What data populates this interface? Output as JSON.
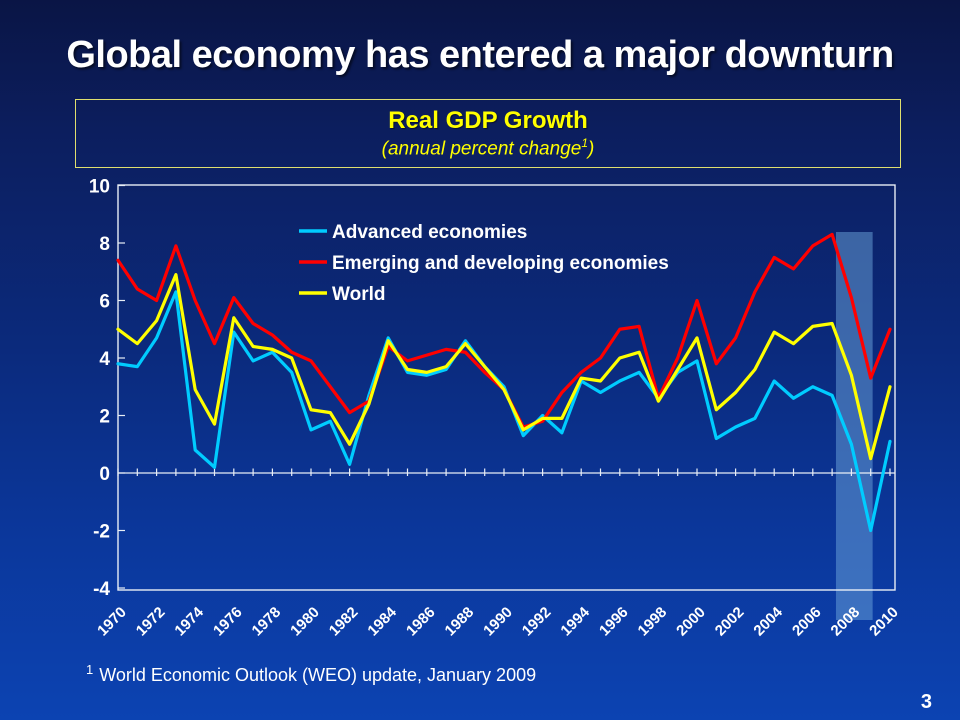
{
  "slide": {
    "title": "Global economy has entered a major downturn",
    "page_number": "3",
    "footnote_sup": "1",
    "footnote_text": "World Economic Outlook (WEO) update, January 2009"
  },
  "chart_header": {
    "title": "Real GDP Growth",
    "subtitle_pre": "(annual percent change",
    "subtitle_sup": "1",
    "subtitle_post": ")"
  },
  "chart_data": {
    "type": "line",
    "title": "Real GDP Growth",
    "subtitle": "(annual percent change 1)",
    "xlabel": "",
    "ylabel": "",
    "xlim": [
      1970,
      2010
    ],
    "ylim": [
      -4,
      10
    ],
    "grid": false,
    "legend_position": "inside-top-center",
    "y_ticks": [
      10,
      8,
      6,
      4,
      2,
      0,
      -2,
      -4
    ],
    "x_tick_labels": [
      "1970",
      "1972",
      "1974",
      "1976",
      "1978",
      "1980",
      "1982",
      "1984",
      "1986",
      "1988",
      "1990",
      "1992",
      "1994",
      "1996",
      "1998",
      "2000",
      "2002",
      "2004",
      "2006",
      "2008",
      "2010"
    ],
    "x": [
      1970,
      1971,
      1972,
      1973,
      1974,
      1975,
      1976,
      1977,
      1978,
      1979,
      1980,
      1981,
      1982,
      1983,
      1984,
      1985,
      1986,
      1987,
      1988,
      1989,
      1990,
      1991,
      1992,
      1993,
      1994,
      1995,
      1996,
      1997,
      1998,
      1999,
      2000,
      2001,
      2002,
      2003,
      2004,
      2005,
      2006,
      2007,
      2008,
      2009,
      2010
    ],
    "series": [
      {
        "name": "Advanced economies",
        "color": "#00ccff",
        "values": [
          3.8,
          3.7,
          4.7,
          6.3,
          0.8,
          0.2,
          4.9,
          3.9,
          4.2,
          3.5,
          1.5,
          1.8,
          0.3,
          2.7,
          4.7,
          3.5,
          3.4,
          3.6,
          4.6,
          3.7,
          3.0,
          1.3,
          2.0,
          1.4,
          3.2,
          2.8,
          3.2,
          3.5,
          2.6,
          3.5,
          3.9,
          1.2,
          1.6,
          1.9,
          3.2,
          2.6,
          3.0,
          2.7,
          1.0,
          -2.0,
          1.1
        ]
      },
      {
        "name": "Emerging and developing economies",
        "color": "#ff0000",
        "values": [
          7.4,
          6.4,
          6.0,
          7.9,
          6.0,
          4.5,
          6.1,
          5.2,
          4.8,
          4.2,
          3.9,
          3.0,
          2.1,
          2.5,
          4.4,
          3.9,
          4.1,
          4.3,
          4.2,
          3.5,
          2.9,
          1.6,
          1.8,
          2.8,
          3.5,
          4.0,
          5.0,
          5.1,
          2.6,
          4.0,
          6.0,
          3.8,
          4.7,
          6.3,
          7.5,
          7.1,
          7.9,
          8.3,
          6.1,
          3.3,
          5.0
        ]
      },
      {
        "name": "World",
        "color": "#ffff00",
        "values": [
          5.0,
          4.5,
          5.3,
          6.9,
          2.9,
          1.7,
          5.4,
          4.4,
          4.3,
          4.0,
          2.2,
          2.1,
          1.0,
          2.4,
          4.6,
          3.6,
          3.5,
          3.7,
          4.5,
          3.7,
          2.9,
          1.5,
          1.9,
          1.9,
          3.3,
          3.2,
          4.0,
          4.2,
          2.5,
          3.6,
          4.7,
          2.2,
          2.8,
          3.6,
          4.9,
          4.5,
          5.1,
          5.2,
          3.4,
          0.5,
          3.0
        ]
      }
    ],
    "highlight_band": {
      "from_x": 2007.2,
      "to_x": 2009.1,
      "color": "#6ea5dc",
      "opacity": 0.5
    }
  }
}
